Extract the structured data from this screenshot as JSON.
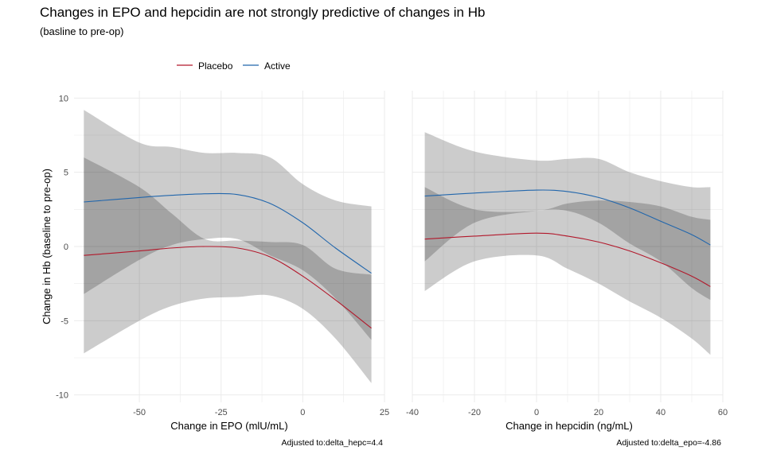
{
  "title": "Changes in EPO and hepcidin are not strongly predictive of changes in Hb",
  "subtitle": "(basline to pre-op)",
  "legend": {
    "position": "top",
    "items": [
      {
        "label": "Placebo",
        "color": "#B2182B"
      },
      {
        "label": "Active",
        "color": "#2166AC"
      }
    ]
  },
  "colors": {
    "band_outer": "#cccccc",
    "band_overlap": "#a3a3a3",
    "grid": "#ebebeb",
    "tick_text": "#4d4d4d"
  },
  "ylabel": "Change in Hb (baseline to pre-op)",
  "chart_data": [
    {
      "type": "line",
      "xlabel": "Change in EPO (mlU/mL)",
      "annotation": "Adjusted to:delta_hepc=4.4",
      "xlim": [
        -70,
        25
      ],
      "ylim": [
        -10.5,
        10.5
      ],
      "xticks": [
        -50,
        -25,
        0,
        25
      ],
      "yticks": [
        -10,
        -5,
        0,
        5,
        10
      ],
      "grid": true,
      "series": [
        {
          "name": "Placebo",
          "x": [
            -67,
            -50,
            -40,
            -30,
            -20,
            -10,
            0,
            10,
            21
          ],
          "y": [
            -0.6,
            -0.3,
            -0.1,
            0.0,
            -0.1,
            -0.7,
            -2.0,
            -3.6,
            -5.5
          ],
          "lower": [
            -7.2,
            -5.0,
            -4.0,
            -3.5,
            -3.4,
            -3.3,
            -4.2,
            -6.2,
            -9.2
          ],
          "upper": [
            6.0,
            4.0,
            2.2,
            0.5,
            0.4,
            0.3,
            0.1,
            -1.5,
            -1.9
          ]
        },
        {
          "name": "Active",
          "x": [
            -67,
            -50,
            -40,
            -30,
            -20,
            -10,
            0,
            10,
            21
          ],
          "y": [
            3.0,
            3.3,
            3.45,
            3.55,
            3.5,
            2.9,
            1.6,
            -0.1,
            -1.8
          ],
          "lower": [
            -3.2,
            -0.9,
            0.1,
            0.5,
            0.5,
            -0.6,
            -1.6,
            -3.5,
            -6.3
          ],
          "upper": [
            9.2,
            7.0,
            6.7,
            6.3,
            6.3,
            6.0,
            4.2,
            3.1,
            2.7
          ]
        }
      ]
    },
    {
      "type": "line",
      "xlabel": "Change in hepcidin (ng/mL)",
      "annotation": "Adjusted to:delta_epo=-4.86",
      "xlim": [
        -40,
        60
      ],
      "ylim": [
        -10.5,
        10.5
      ],
      "xticks": [
        -40,
        -20,
        0,
        20,
        40,
        60
      ],
      "yticks": [
        -10,
        -5,
        0,
        5,
        10
      ],
      "grid": true,
      "series": [
        {
          "name": "Placebo",
          "x": [
            -36,
            -20,
            0,
            10,
            20,
            30,
            40,
            50,
            56
          ],
          "y": [
            0.5,
            0.7,
            0.9,
            0.7,
            0.3,
            -0.3,
            -1.1,
            -2.0,
            -2.7
          ],
          "lower": [
            -3.0,
            -1.0,
            -0.6,
            -1.5,
            -2.5,
            -3.7,
            -4.8,
            -6.2,
            -7.3
          ],
          "upper": [
            4.0,
            2.5,
            2.4,
            2.9,
            3.1,
            3.0,
            2.7,
            2.0,
            1.8
          ]
        },
        {
          "name": "Active",
          "x": [
            -36,
            -20,
            0,
            10,
            20,
            30,
            40,
            50,
            56
          ],
          "y": [
            3.4,
            3.6,
            3.8,
            3.7,
            3.3,
            2.6,
            1.7,
            0.8,
            0.1
          ],
          "lower": [
            -1.0,
            1.6,
            2.4,
            2.4,
            1.6,
            0.2,
            -1.0,
            -2.8,
            -3.6
          ],
          "upper": [
            7.7,
            6.4,
            5.8,
            5.9,
            5.9,
            5.0,
            4.4,
            4.0,
            4.0
          ]
        }
      ]
    }
  ]
}
